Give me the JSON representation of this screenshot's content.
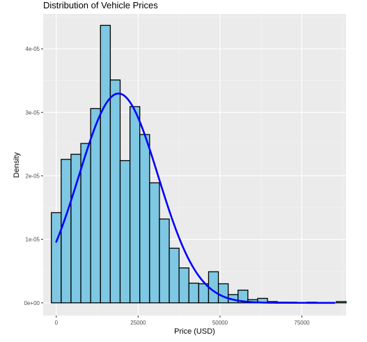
{
  "chart_data": {
    "type": "histogram",
    "title": "Distribution of Vehicle Prices",
    "xlabel": "Price (USD)",
    "ylabel": "Density",
    "xlim": [
      -4000,
      88500
    ],
    "ylim": [
      -2e-06,
      4.55e-05
    ],
    "x_ticks": [
      0,
      25000,
      50000,
      75000
    ],
    "x_tick_labels": [
      "0",
      "25000",
      "50000",
      "75000"
    ],
    "y_ticks": [
      0,
      1e-05,
      2e-05,
      3e-05,
      4e-05
    ],
    "y_tick_labels": [
      "0e+00",
      "1e-05",
      "2e-05",
      "3e-05",
      "4e-05"
    ],
    "grid": true,
    "bin_width": 3000,
    "bin_starts": [
      -1500,
      1500,
      4500,
      7500,
      10500,
      13500,
      16500,
      19500,
      22500,
      25500,
      28500,
      31500,
      34500,
      37500,
      40500,
      43500,
      46500,
      49500,
      52500,
      55500,
      58500,
      61500,
      64500,
      67500,
      70500,
      73500,
      76500,
      79500,
      82500,
      85500
    ],
    "densities": [
      1.42e-05,
      2.26e-05,
      2.34e-05,
      2.51e-05,
      3.06e-05,
      4.37e-05,
      3.51e-05,
      2.24e-05,
      3.09e-05,
      2.65e-05,
      1.89e-05,
      1.32e-05,
      8.6e-06,
      5.5e-06,
      3.1e-06,
      3e-06,
      4.9e-06,
      3e-06,
      1.3e-06,
      2e-06,
      5e-07,
      7e-07,
      2e-07,
      1e-07,
      1e-07,
      0,
      1e-07,
      0,
      0,
      2e-07
    ],
    "bar_fill": "#7ec8e3",
    "bar_outline": "#000000",
    "curve": {
      "type": "normal_density",
      "mean": 19000,
      "sd": 12100,
      "x_range": [
        0,
        85000
      ],
      "color": "#0000ff"
    }
  }
}
